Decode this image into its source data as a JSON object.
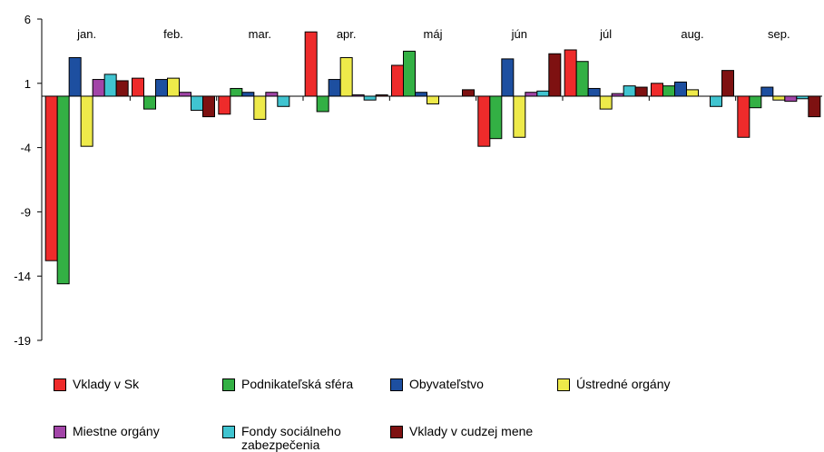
{
  "chart_data": {
    "type": "bar",
    "title": "",
    "xlabel": "",
    "ylabel": "",
    "ylim": [
      -19,
      6
    ],
    "yticks": [
      6,
      1,
      -4,
      -9,
      -14,
      -19
    ],
    "categories": [
      "jan.",
      "feb.",
      "mar.",
      "apr.",
      "máj",
      "jún",
      "júl",
      "aug.",
      "sep."
    ],
    "legend_position": "bottom",
    "grid": false,
    "series": [
      {
        "name": "Vklady v Sk",
        "color": "#ee2b2b",
        "values": [
          -12.8,
          1.4,
          -1.4,
          5.0,
          2.4,
          -3.9,
          3.6,
          1.0,
          -3.2
        ]
      },
      {
        "name": "Podnikateľská sféra",
        "color": "#33b044",
        "values": [
          -14.6,
          -1.0,
          0.6,
          -1.2,
          3.5,
          -3.3,
          2.7,
          0.8,
          -0.9
        ]
      },
      {
        "name": "Obyvateľstvo",
        "color": "#1d4fa0",
        "values": [
          3.0,
          1.3,
          0.3,
          1.3,
          0.3,
          2.9,
          0.6,
          1.1,
          0.7
        ]
      },
      {
        "name": "Ústredné orgány",
        "color": "#eeea4a",
        "values": [
          -3.9,
          1.4,
          -1.8,
          3.0,
          -0.6,
          -3.2,
          -1.0,
          0.5,
          -0.3
        ]
      },
      {
        "name": "Miestne orgány",
        "color": "#a245a8",
        "values": [
          1.3,
          0.3,
          0.3,
          0.1,
          0.0,
          0.3,
          0.2,
          0.0,
          -0.4
        ]
      },
      {
        "name": "Fondy sociálneho zabezpečenia",
        "color": "#40c4d0",
        "values": [
          1.7,
          -1.1,
          -0.8,
          -0.3,
          0.0,
          0.4,
          0.8,
          -0.8,
          -0.2
        ]
      },
      {
        "name": "Vklady v cudzej mene",
        "color": "#7e1111",
        "values": [
          1.2,
          -1.6,
          0.0,
          0.1,
          0.5,
          3.3,
          0.7,
          2.0,
          -1.6
        ]
      }
    ]
  }
}
